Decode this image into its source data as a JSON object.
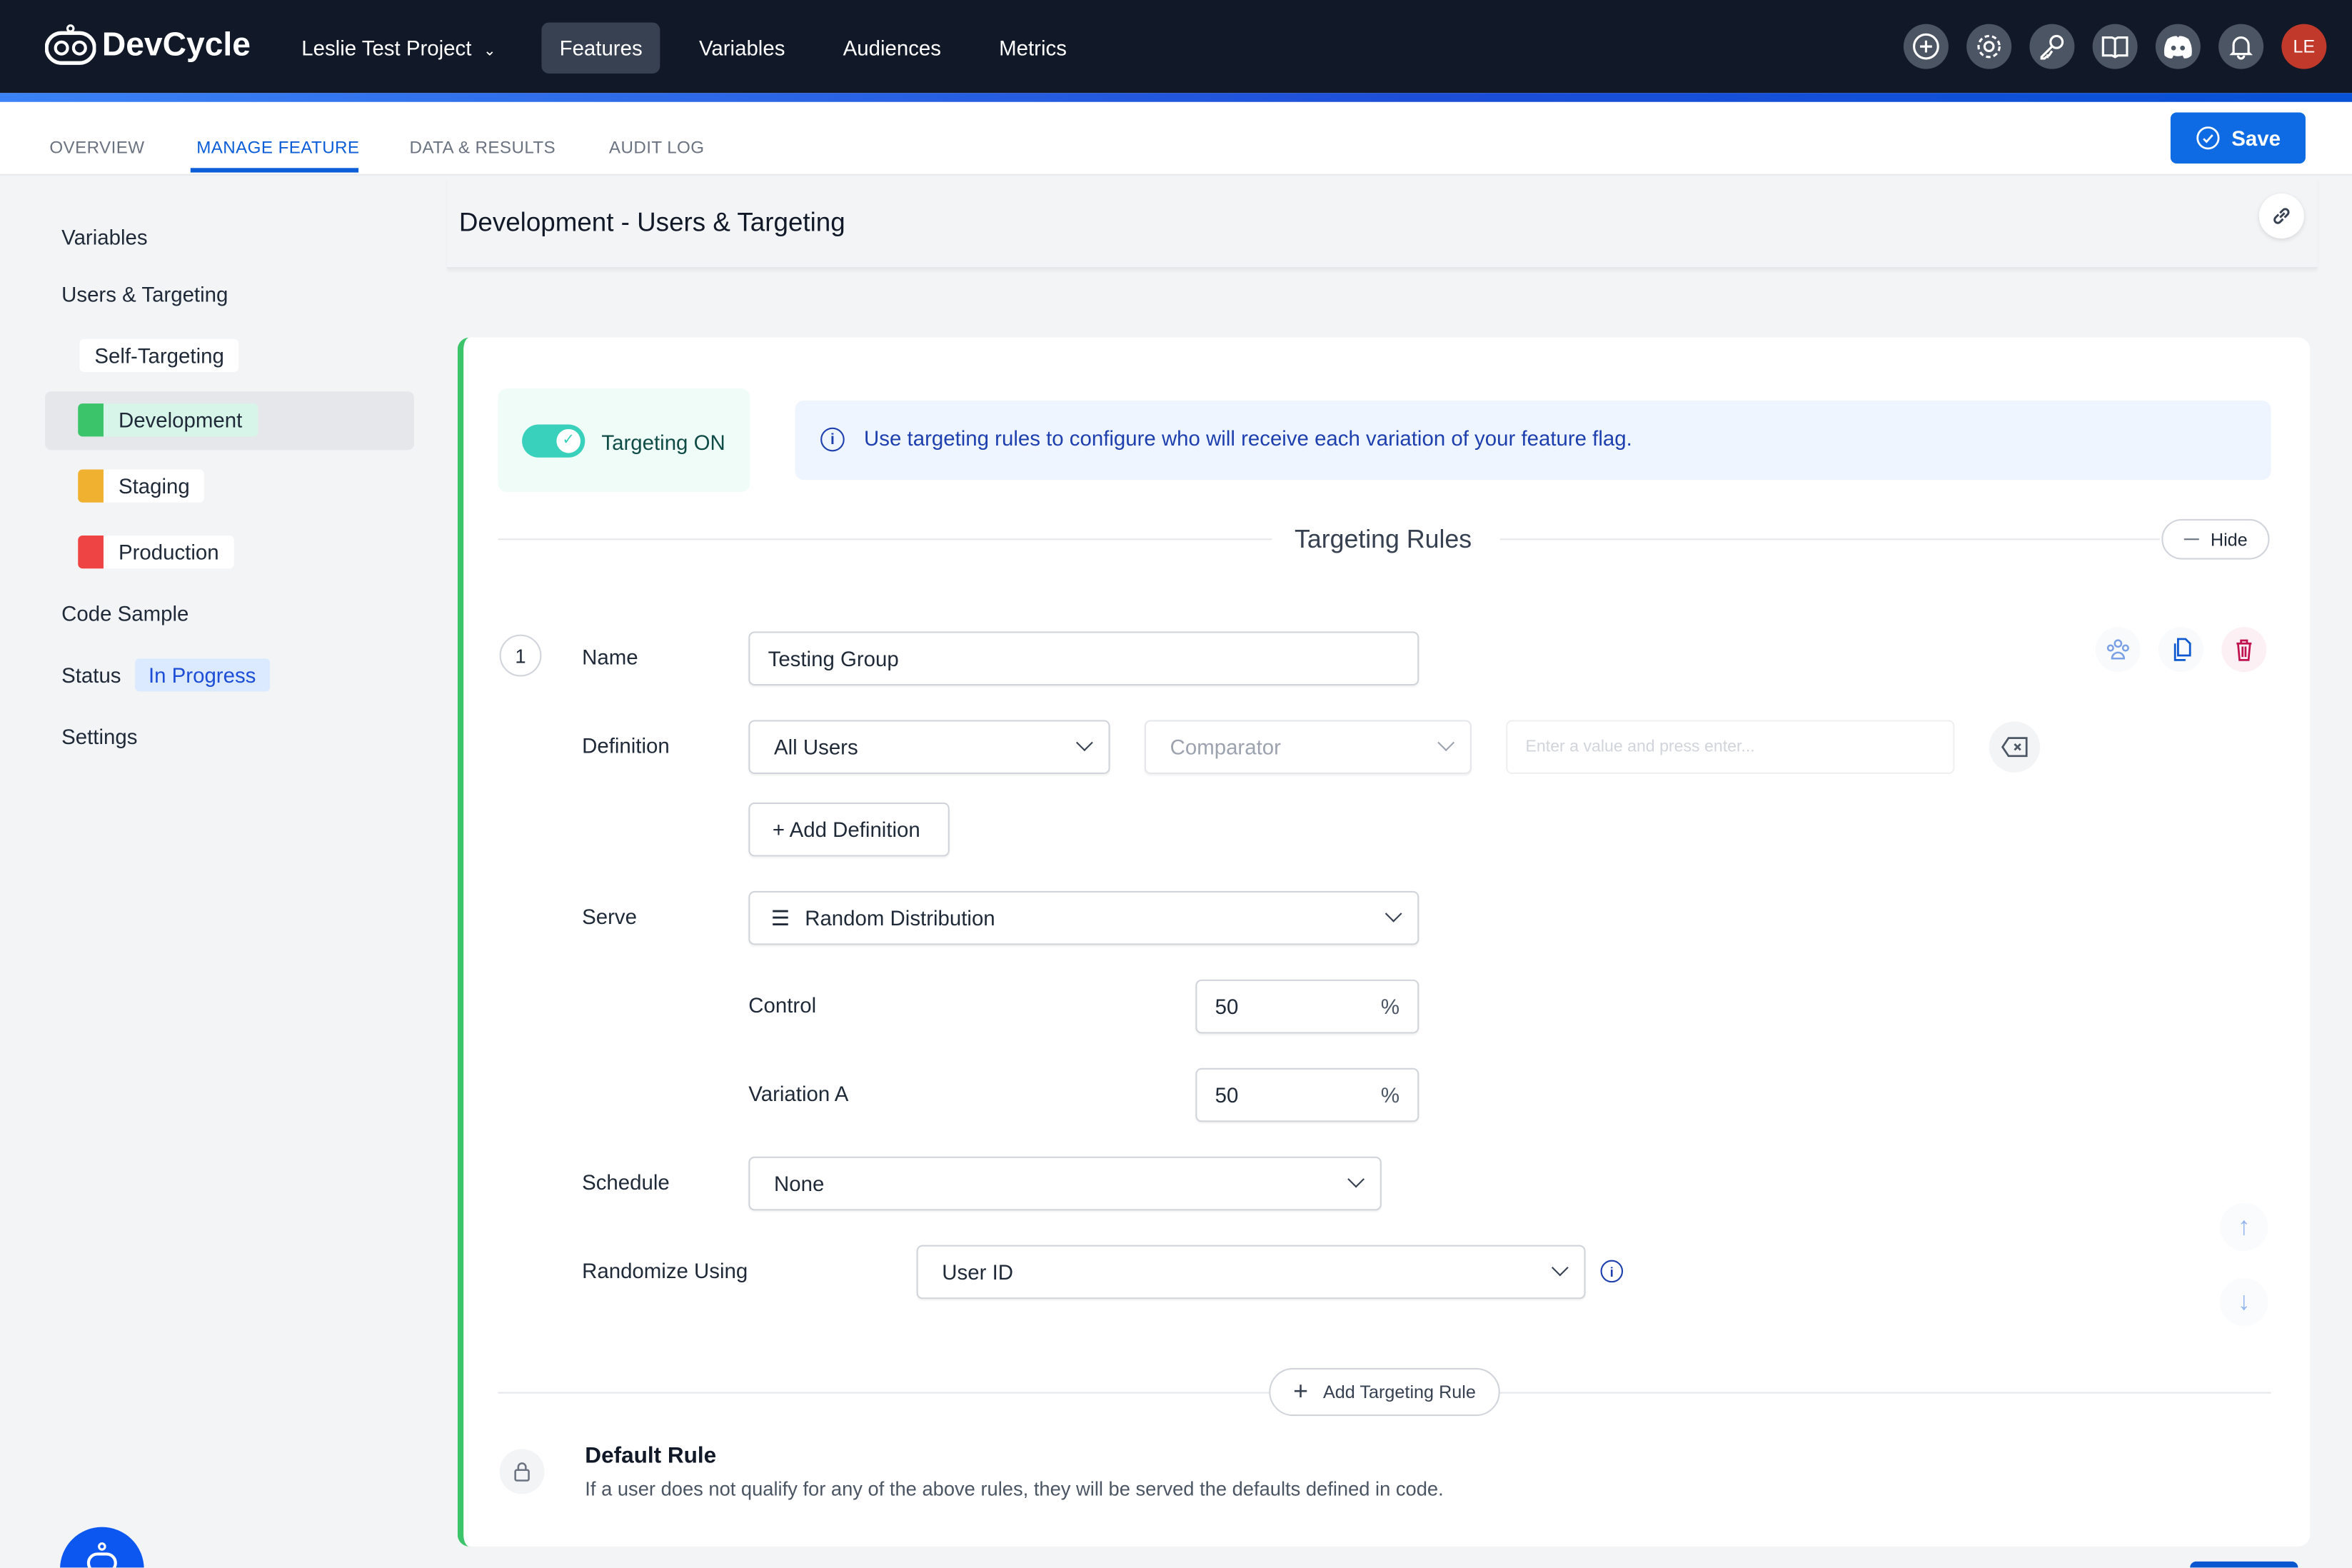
{
  "app": {
    "brand": "DevCycle",
    "project": "Leslie Test Project"
  },
  "nav": {
    "items": [
      "Features",
      "Variables",
      "Audiences",
      "Metrics"
    ],
    "active": "Features"
  },
  "top_icons": [
    "plus-circle-icon",
    "gear-icon",
    "key-icon",
    "book-icon",
    "discord-icon",
    "bell-icon"
  ],
  "avatar": {
    "initials": "LE",
    "color": "#c0392b"
  },
  "tabs": {
    "items": [
      "OVERVIEW",
      "MANAGE FEATURE",
      "DATA & RESULTS",
      "AUDIT LOG"
    ],
    "active": "MANAGE FEATURE"
  },
  "save_label": "Save",
  "sidebar": {
    "variables": "Variables",
    "users_targeting": "Users & Targeting",
    "self_targeting": "Self-Targeting",
    "environments": [
      {
        "label": "Development",
        "color": "#3cc46a",
        "active": true
      },
      {
        "label": "Staging",
        "color": "#f0b030",
        "active": false
      },
      {
        "label": "Production",
        "color": "#ef4444",
        "active": false
      }
    ],
    "code_sample": "Code Sample",
    "status_label": "Status",
    "status_value": "In Progress",
    "settings": "Settings"
  },
  "page": {
    "title": "Development - Users & Targeting"
  },
  "targeting": {
    "toggle_label": "Targeting ON",
    "toggle_on": true,
    "info": "Use targeting rules to configure who will receive each variation of your feature flag.",
    "section_title": "Targeting Rules",
    "hide_label": "Hide"
  },
  "rule": {
    "number": "1",
    "name_label": "Name",
    "name_value": "Testing Group",
    "definition_label": "Definition",
    "definition_value": "All Users",
    "comparator_placeholder": "Comparator",
    "value_placeholder": "Enter a value and press enter...",
    "add_definition": "+ Add Definition",
    "serve_label": "Serve",
    "serve_value": "Random Distribution",
    "distribution": [
      {
        "label": "Control",
        "value": "50",
        "unit": "%"
      },
      {
        "label": "Variation A",
        "value": "50",
        "unit": "%"
      }
    ],
    "schedule_label": "Schedule",
    "schedule_value": "None",
    "randomize_label": "Randomize Using",
    "randomize_value": "User ID"
  },
  "add_rule_label": "Add Targeting Rule",
  "default_rule": {
    "title": "Default Rule",
    "description": "If a user does not qualify for any of the above rules, they will be served the defaults defined in code."
  }
}
